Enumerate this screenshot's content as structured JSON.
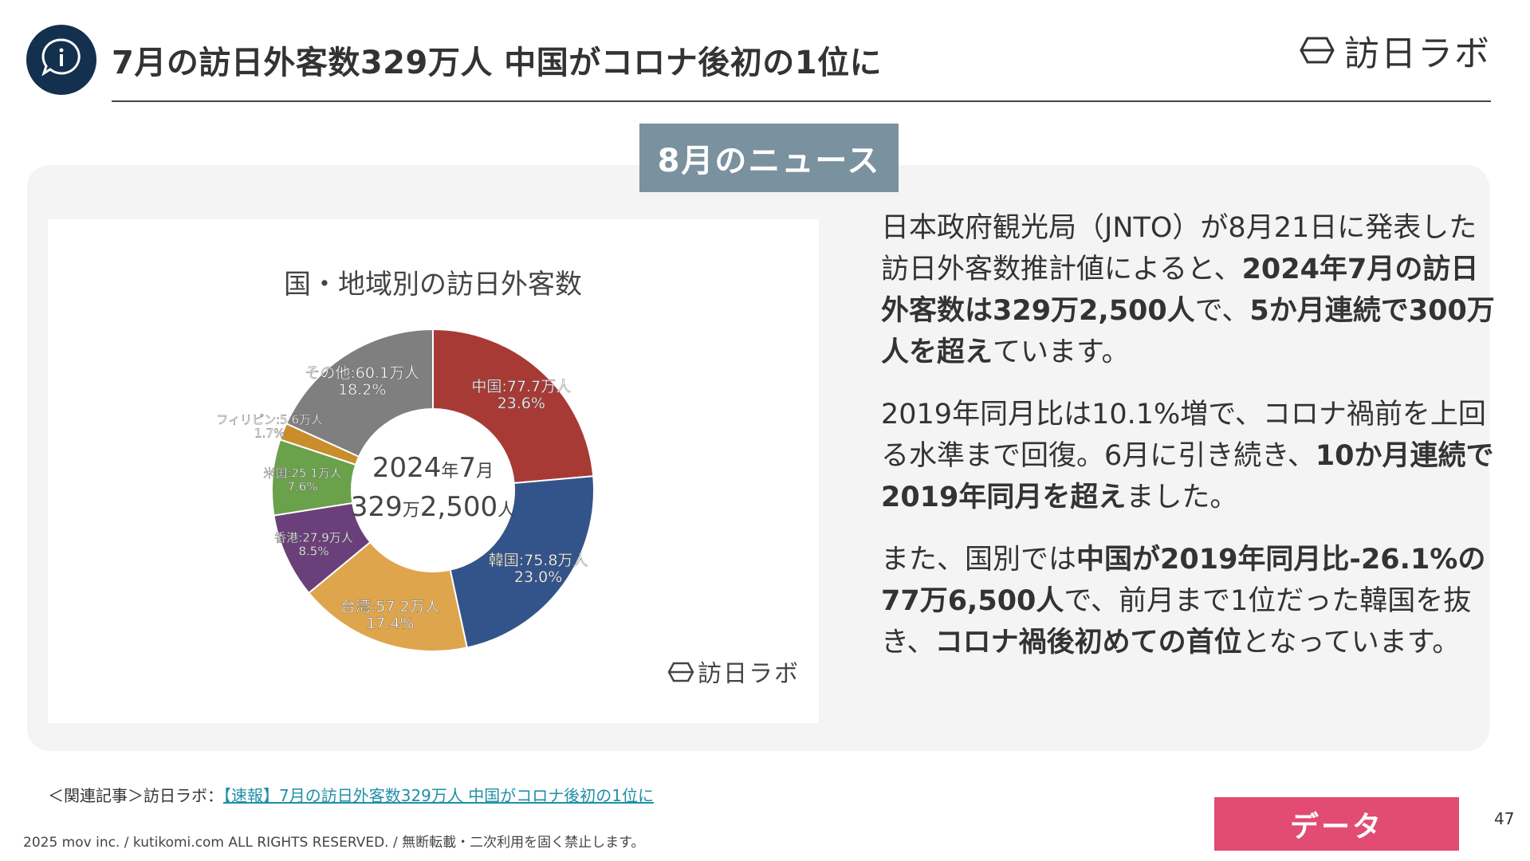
{
  "header": {
    "title": "7月の訪日外客数329万人 中国がコロナ後初の1位に",
    "brand": "訪日ラボ"
  },
  "news_tab": "8月のニュース",
  "chart_data": {
    "type": "pie",
    "title": "国・地域別の訪日外客数",
    "center_line1_year": "2024",
    "center_line1_year_unit": "年",
    "center_line1_month": "7",
    "center_line1_month_unit": "月",
    "center_line2_a": "329",
    "center_line2_a_unit": "万",
    "center_line2_b": "2,500",
    "center_line2_b_unit": "人",
    "watermark": "訪日ラボ",
    "slices": [
      {
        "name": "中国",
        "value_label": "77.7万人",
        "percent": 23.6,
        "percent_label": "23.6%",
        "color": "#a83a36"
      },
      {
        "name": "韓国",
        "value_label": "75.8万人",
        "percent": 23.0,
        "percent_label": "23.0%",
        "color": "#33548a"
      },
      {
        "name": "台湾",
        "value_label": "57.2万人",
        "percent": 17.4,
        "percent_label": "17.4%",
        "color": "#dfa54c"
      },
      {
        "name": "香港",
        "value_label": "27.9万人",
        "percent": 8.5,
        "percent_label": "8.5%",
        "color": "#6a3f7a"
      },
      {
        "name": "米国",
        "value_label": "25.1万人",
        "percent": 7.6,
        "percent_label": "7.6%",
        "color": "#6aa14b"
      },
      {
        "name": "フィリピン",
        "value_label": "5.6万人",
        "percent": 1.7,
        "percent_label": "1.7%",
        "color": "#c98d2c"
      },
      {
        "name": "その他",
        "value_label": "60.1万人",
        "percent": 18.2,
        "percent_label": "18.2%",
        "color": "#7f7f7f"
      }
    ]
  },
  "body": {
    "p1": [
      {
        "t": "日本政府観光局（JNTO）が8月21日に発表した訪日外客数推計値によると、",
        "b": false
      },
      {
        "t": "2024年7月の訪日外客数は329万2,500人",
        "b": true
      },
      {
        "t": "で、",
        "b": false
      },
      {
        "t": "5か月連続で300万人を超え",
        "b": true
      },
      {
        "t": "ています。",
        "b": false
      }
    ],
    "p2": [
      {
        "t": "2019年同月比は10.1%増で、コロナ禍前を上回る水準まで回復。6月に引き続き、",
        "b": false
      },
      {
        "t": "10か月連続で2019年同月を超え",
        "b": true
      },
      {
        "t": "ました。",
        "b": false
      }
    ],
    "p3": [
      {
        "t": "また、国別では",
        "b": false
      },
      {
        "t": "中国が2019年同月比-26.1%の77万6,500人",
        "b": true
      },
      {
        "t": "で、前月まで1位だった韓国を抜き、",
        "b": false
      },
      {
        "t": "コロナ禍後初めての首位",
        "b": true
      },
      {
        "t": "となっています。",
        "b": false
      }
    ]
  },
  "footer": {
    "related_prefix": "＜関連記事＞訪日ラボ：",
    "related_link": "【速報】7月の訪日外客数329万人 中国がコロナ後初の1位に",
    "copyright": "2025 mov inc. / kutikomi.com ALL RIGHTS RESERVED. / 無断転載・二次利用を固く禁止します。",
    "data_button": "データ",
    "page_number": "47"
  },
  "colors": {
    "navy": "#14304f",
    "tab": "#7a919f",
    "button": "#e24b72",
    "link": "#1f8fa8"
  }
}
